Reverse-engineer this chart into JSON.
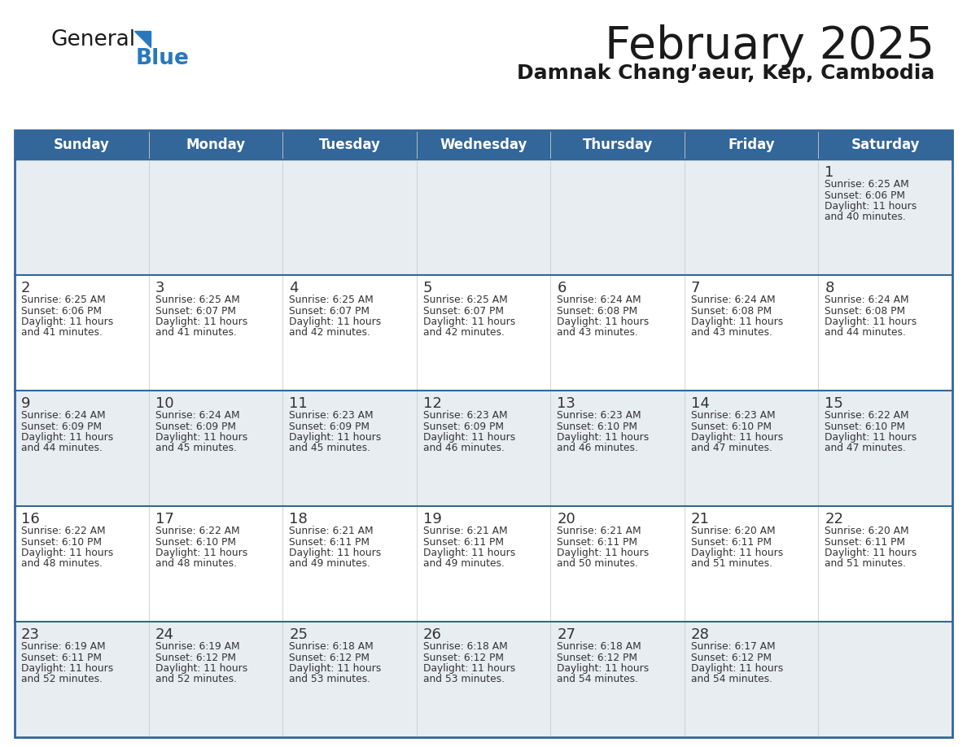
{
  "title": "February 2025",
  "subtitle": "Damnak Chang’aeur, Kep, Cambodia",
  "days_of_week": [
    "Sunday",
    "Monday",
    "Tuesday",
    "Wednesday",
    "Thursday",
    "Friday",
    "Saturday"
  ],
  "header_bg": "#336699",
  "header_text": "#ffffff",
  "row_bg_shaded": "#e8edf2",
  "row_bg_white": "#ffffff",
  "grid_border_color": "#336699",
  "row_divider_color": "#336699",
  "col_divider_color": "#cccccc",
  "title_color": "#1a1a1a",
  "subtitle_color": "#1a1a1a",
  "text_color": "#333333",
  "day_num_color": "#333333",
  "logo_general_color": "#1a1a1a",
  "logo_blue_color": "#2878be",
  "weeks": [
    [
      null,
      null,
      null,
      null,
      null,
      null,
      1
    ],
    [
      2,
      3,
      4,
      5,
      6,
      7,
      8
    ],
    [
      9,
      10,
      11,
      12,
      13,
      14,
      15
    ],
    [
      16,
      17,
      18,
      19,
      20,
      21,
      22
    ],
    [
      23,
      24,
      25,
      26,
      27,
      28,
      null
    ]
  ],
  "row_shaded": [
    true,
    false,
    true,
    false,
    true
  ],
  "sun_data": {
    "1": {
      "sunrise": "6:25 AM",
      "sunset": "6:06 PM",
      "daylight_line1": "Daylight: 11 hours",
      "daylight_line2": "and 40 minutes."
    },
    "2": {
      "sunrise": "6:25 AM",
      "sunset": "6:06 PM",
      "daylight_line1": "Daylight: 11 hours",
      "daylight_line2": "and 41 minutes."
    },
    "3": {
      "sunrise": "6:25 AM",
      "sunset": "6:07 PM",
      "daylight_line1": "Daylight: 11 hours",
      "daylight_line2": "and 41 minutes."
    },
    "4": {
      "sunrise": "6:25 AM",
      "sunset": "6:07 PM",
      "daylight_line1": "Daylight: 11 hours",
      "daylight_line2": "and 42 minutes."
    },
    "5": {
      "sunrise": "6:25 AM",
      "sunset": "6:07 PM",
      "daylight_line1": "Daylight: 11 hours",
      "daylight_line2": "and 42 minutes."
    },
    "6": {
      "sunrise": "6:24 AM",
      "sunset": "6:08 PM",
      "daylight_line1": "Daylight: 11 hours",
      "daylight_line2": "and 43 minutes."
    },
    "7": {
      "sunrise": "6:24 AM",
      "sunset": "6:08 PM",
      "daylight_line1": "Daylight: 11 hours",
      "daylight_line2": "and 43 minutes."
    },
    "8": {
      "sunrise": "6:24 AM",
      "sunset": "6:08 PM",
      "daylight_line1": "Daylight: 11 hours",
      "daylight_line2": "and 44 minutes."
    },
    "9": {
      "sunrise": "6:24 AM",
      "sunset": "6:09 PM",
      "daylight_line1": "Daylight: 11 hours",
      "daylight_line2": "and 44 minutes."
    },
    "10": {
      "sunrise": "6:24 AM",
      "sunset": "6:09 PM",
      "daylight_line1": "Daylight: 11 hours",
      "daylight_line2": "and 45 minutes."
    },
    "11": {
      "sunrise": "6:23 AM",
      "sunset": "6:09 PM",
      "daylight_line1": "Daylight: 11 hours",
      "daylight_line2": "and 45 minutes."
    },
    "12": {
      "sunrise": "6:23 AM",
      "sunset": "6:09 PM",
      "daylight_line1": "Daylight: 11 hours",
      "daylight_line2": "and 46 minutes."
    },
    "13": {
      "sunrise": "6:23 AM",
      "sunset": "6:10 PM",
      "daylight_line1": "Daylight: 11 hours",
      "daylight_line2": "and 46 minutes."
    },
    "14": {
      "sunrise": "6:23 AM",
      "sunset": "6:10 PM",
      "daylight_line1": "Daylight: 11 hours",
      "daylight_line2": "and 47 minutes."
    },
    "15": {
      "sunrise": "6:22 AM",
      "sunset": "6:10 PM",
      "daylight_line1": "Daylight: 11 hours",
      "daylight_line2": "and 47 minutes."
    },
    "16": {
      "sunrise": "6:22 AM",
      "sunset": "6:10 PM",
      "daylight_line1": "Daylight: 11 hours",
      "daylight_line2": "and 48 minutes."
    },
    "17": {
      "sunrise": "6:22 AM",
      "sunset": "6:10 PM",
      "daylight_line1": "Daylight: 11 hours",
      "daylight_line2": "and 48 minutes."
    },
    "18": {
      "sunrise": "6:21 AM",
      "sunset": "6:11 PM",
      "daylight_line1": "Daylight: 11 hours",
      "daylight_line2": "and 49 minutes."
    },
    "19": {
      "sunrise": "6:21 AM",
      "sunset": "6:11 PM",
      "daylight_line1": "Daylight: 11 hours",
      "daylight_line2": "and 49 minutes."
    },
    "20": {
      "sunrise": "6:21 AM",
      "sunset": "6:11 PM",
      "daylight_line1": "Daylight: 11 hours",
      "daylight_line2": "and 50 minutes."
    },
    "21": {
      "sunrise": "6:20 AM",
      "sunset": "6:11 PM",
      "daylight_line1": "Daylight: 11 hours",
      "daylight_line2": "and 51 minutes."
    },
    "22": {
      "sunrise": "6:20 AM",
      "sunset": "6:11 PM",
      "daylight_line1": "Daylight: 11 hours",
      "daylight_line2": "and 51 minutes."
    },
    "23": {
      "sunrise": "6:19 AM",
      "sunset": "6:11 PM",
      "daylight_line1": "Daylight: 11 hours",
      "daylight_line2": "and 52 minutes."
    },
    "24": {
      "sunrise": "6:19 AM",
      "sunset": "6:12 PM",
      "daylight_line1": "Daylight: 11 hours",
      "daylight_line2": "and 52 minutes."
    },
    "25": {
      "sunrise": "6:18 AM",
      "sunset": "6:12 PM",
      "daylight_line1": "Daylight: 11 hours",
      "daylight_line2": "and 53 minutes."
    },
    "26": {
      "sunrise": "6:18 AM",
      "sunset": "6:12 PM",
      "daylight_line1": "Daylight: 11 hours",
      "daylight_line2": "and 53 minutes."
    },
    "27": {
      "sunrise": "6:18 AM",
      "sunset": "6:12 PM",
      "daylight_line1": "Daylight: 11 hours",
      "daylight_line2": "and 54 minutes."
    },
    "28": {
      "sunrise": "6:17 AM",
      "sunset": "6:12 PM",
      "daylight_line1": "Daylight: 11 hours",
      "daylight_line2": "and 54 minutes."
    }
  }
}
